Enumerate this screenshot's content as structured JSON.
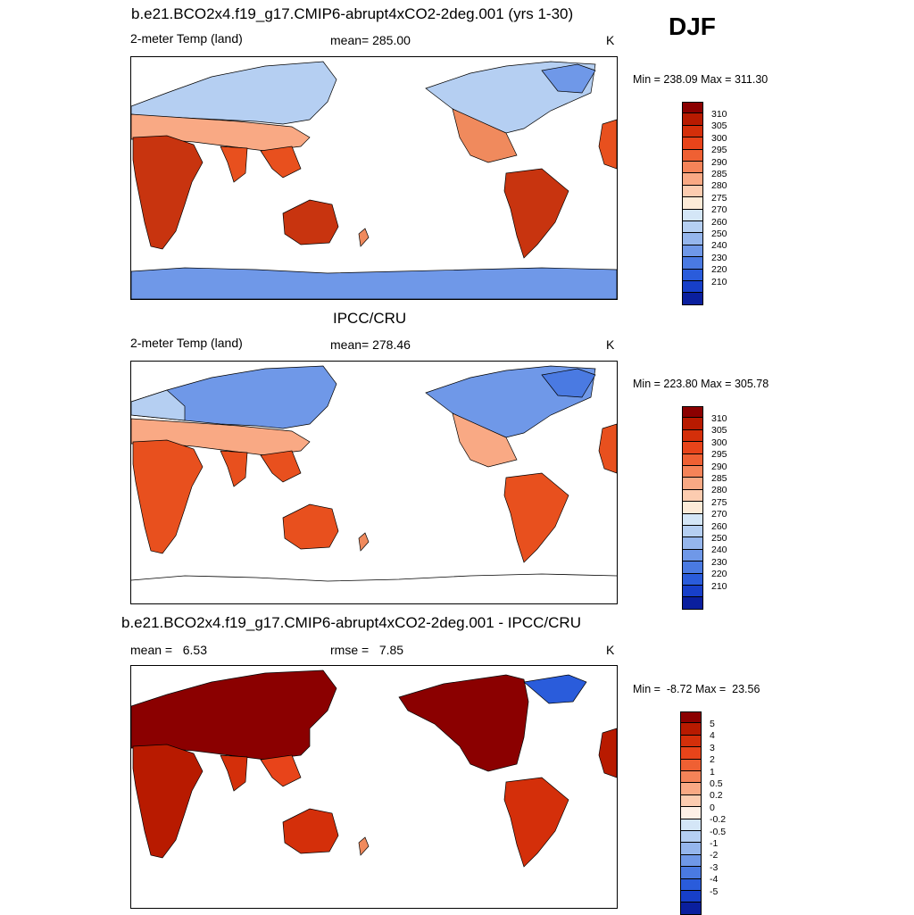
{
  "header": {
    "season": "DJF"
  },
  "panels": [
    {
      "title": "b.e21.BCO2x4.f19_g17.CMIP6-abrupt4xCO2-2deg.001 (yrs 1-30)",
      "left_label": "2-meter Temp (land)",
      "center_label": "mean= 285.00",
      "units": "K",
      "minmax": "Min = 238.09 Max = 311.30"
    },
    {
      "title": "IPCC/CRU",
      "left_label": "2-meter Temp (land)",
      "center_label": "mean= 278.46",
      "units": "K",
      "minmax": "Min = 223.80 Max = 305.78"
    },
    {
      "title": "b.e21.BCO2x4.f19_g17.CMIP6-abrupt4xCO2-2deg.001 - IPCC/CRU",
      "left_label": "mean =   6.53",
      "center_label": "rmse =   7.85",
      "units": "K",
      "minmax": "Min =  -8.72 Max =  23.56"
    }
  ],
  "colorbar_temp": {
    "labels": [
      "310",
      "305",
      "300",
      "295",
      "290",
      "285",
      "280",
      "275",
      "270",
      "260",
      "250",
      "240",
      "230",
      "220",
      "210"
    ],
    "colors": [
      "#8b0000",
      "#b81a00",
      "#d42f0a",
      "#e8441a",
      "#ef6033",
      "#f58358",
      "#f9a984",
      "#fcccb0",
      "#fdebd8",
      "#d4e6f7",
      "#b5cff2",
      "#95b6ed",
      "#6f98e8",
      "#4a7ae2",
      "#2a5cdb",
      "#173fc9",
      "#0a1f9e"
    ]
  },
  "colorbar_diff": {
    "labels": [
      "5",
      "4",
      "3",
      "2",
      "1",
      "0.5",
      "0.2",
      "0",
      "-0.2",
      "-0.5",
      "-1",
      "-2",
      "-3",
      "-4",
      "-5"
    ],
    "colors": [
      "#8b0000",
      "#b81a00",
      "#d42f0a",
      "#e8441a",
      "#ef6033",
      "#f58358",
      "#f9a984",
      "#fcccb0",
      "#fdf0e6",
      "#d4e6f7",
      "#b5cff2",
      "#95b6ed",
      "#6f98e8",
      "#4a7ae2",
      "#2a5cdb",
      "#173fc9",
      "#0a1f9e"
    ]
  },
  "legend_colors": {
    "hot": "#c8340f",
    "warm": "#e8501e",
    "subtropic": "#f08a5d",
    "cool": "#b5cff2",
    "cold": "#6f98e8",
    "diff_hot": "#8b0000",
    "diff_ocean": "#ffffff"
  }
}
